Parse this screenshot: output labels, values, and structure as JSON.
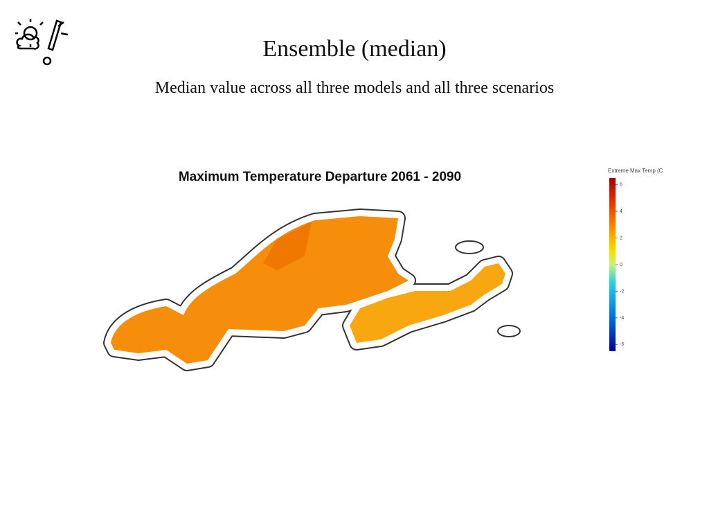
{
  "header": {
    "title": "Ensemble (median)",
    "subtitle": "Median value across all three models and all three scenarios"
  },
  "map": {
    "title": "Maximum Temperature Departure 2061 - 2090"
  },
  "legend": {
    "title": "Extreme Max Temp (C",
    "range": [
      -6.5,
      6.5
    ],
    "ticks": [
      6,
      4,
      2,
      0,
      -2,
      -4,
      -6
    ]
  }
}
